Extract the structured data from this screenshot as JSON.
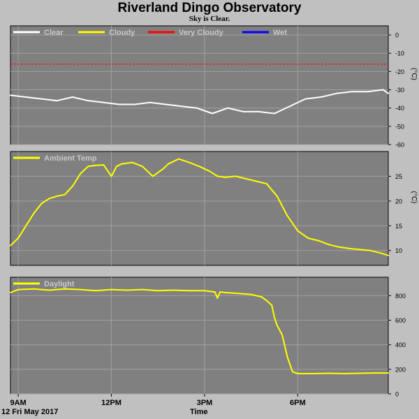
{
  "header": {
    "title": "Riverland Dingo Observatory",
    "subtitle": "Sky is Clear."
  },
  "footer": {
    "date": "12 Fri May 2017",
    "xlabel": "Time"
  },
  "colors": {
    "background": "#c0c0c0",
    "plot_bg": "#808080",
    "grid": "#a0a0a0",
    "clear": "#ffffff",
    "cloudy": "#ffff00",
    "very_cloudy": "#ff0000",
    "wet": "#0000ff"
  },
  "chart_data": [
    {
      "type": "line",
      "title": "",
      "xlabel": "Time",
      "ylabel": "(°C)",
      "x_range": [
        "08:45",
        "20:55"
      ],
      "x_ticks": [
        {
          "label": "9AM",
          "time": "09:00"
        },
        {
          "label": "12PM",
          "time": "12:00"
        },
        {
          "label": "3PM",
          "time": "15:00"
        },
        {
          "label": "6PM",
          "time": "18:00"
        }
      ],
      "ylim": [
        -60,
        5
      ],
      "y_ticks": [
        0,
        -10,
        -20,
        -30,
        -40,
        -50,
        -60
      ],
      "legend": [
        {
          "name": "Clear",
          "color": "#ffffff"
        },
        {
          "name": "Cloudy",
          "color": "#ffff00"
        },
        {
          "name": "Very Cloudy",
          "color": "#ff0000"
        },
        {
          "name": "Wet",
          "color": "#0000ff"
        }
      ],
      "threshold": {
        "value": -16,
        "color": "#ff0000",
        "style": "dashed"
      },
      "series": [
        {
          "name": "Clear",
          "color": "#ffffff",
          "x": [
            "08:45",
            "09:15",
            "09:45",
            "10:15",
            "10:45",
            "11:15",
            "11:45",
            "12:15",
            "12:45",
            "13:15",
            "13:45",
            "14:15",
            "14:45",
            "15:15",
            "15:45",
            "16:15",
            "16:45",
            "17:15",
            "17:45",
            "18:15",
            "18:45",
            "19:15",
            "19:45",
            "20:15",
            "20:45",
            "20:55"
          ],
          "y": [
            -33,
            -34,
            -35,
            -36,
            -34,
            -36,
            -37,
            -38,
            -38,
            -37,
            -38,
            -39,
            -40,
            -43,
            -40,
            -42,
            -42,
            -43,
            -39,
            -35,
            -34,
            -32,
            -31,
            -31,
            -30,
            -32
          ]
        }
      ]
    },
    {
      "type": "line",
      "title": "",
      "xlabel": "Time",
      "ylabel": "(°C)",
      "x_range": [
        "08:45",
        "20:55"
      ],
      "x_ticks": [
        {
          "label": "9AM",
          "time": "09:00"
        },
        {
          "label": "12PM",
          "time": "12:00"
        },
        {
          "label": "3PM",
          "time": "15:00"
        },
        {
          "label": "6PM",
          "time": "18:00"
        }
      ],
      "ylim": [
        7,
        30
      ],
      "y_ticks": [
        10,
        15,
        20,
        25
      ],
      "legend": [
        {
          "name": "Ambient Temp",
          "color": "#ffff00"
        }
      ],
      "series": [
        {
          "name": "Ambient Temp",
          "color": "#ffff00",
          "x": [
            "08:45",
            "09:00",
            "09:15",
            "09:30",
            "09:45",
            "10:00",
            "10:15",
            "10:30",
            "10:45",
            "11:00",
            "11:15",
            "11:30",
            "11:45",
            "12:00",
            "12:10",
            "12:20",
            "12:40",
            "13:00",
            "13:20",
            "13:40",
            "13:50",
            "14:00",
            "14:10",
            "14:30",
            "14:50",
            "15:10",
            "15:25",
            "15:40",
            "16:00",
            "16:20",
            "16:40",
            "17:00",
            "17:20",
            "17:40",
            "18:00",
            "18:20",
            "18:40",
            "19:00",
            "19:20",
            "19:40",
            "20:00",
            "20:20",
            "20:40",
            "20:55"
          ],
          "y": [
            11,
            12.5,
            15,
            17.5,
            19.5,
            20.5,
            21,
            21.3,
            23,
            25.5,
            27,
            27.2,
            27.3,
            25,
            27,
            27.5,
            27.8,
            27,
            25,
            26.5,
            27.5,
            28,
            28.5,
            27.8,
            27,
            26,
            25,
            24.8,
            25,
            24.5,
            24,
            23.5,
            21,
            17,
            14,
            12.5,
            12,
            11.2,
            10.7,
            10.4,
            10.2,
            10,
            9.5,
            9
          ]
        }
      ]
    },
    {
      "type": "line",
      "title": "",
      "xlabel": "Time",
      "ylabel": "",
      "x_range": [
        "08:45",
        "20:55"
      ],
      "x_ticks": [
        {
          "label": "9AM",
          "time": "09:00"
        },
        {
          "label": "12PM",
          "time": "12:00"
        },
        {
          "label": "3PM",
          "time": "15:00"
        },
        {
          "label": "6PM",
          "time": "18:00"
        }
      ],
      "ylim": [
        0,
        950
      ],
      "y_ticks": [
        0,
        200,
        400,
        600,
        800
      ],
      "legend": [
        {
          "name": "Daylight",
          "color": "#ffff00"
        }
      ],
      "series": [
        {
          "name": "Daylight",
          "color": "#ffff00",
          "x": [
            "08:45",
            "09:00",
            "09:30",
            "10:00",
            "10:30",
            "11:00",
            "11:30",
            "12:00",
            "12:30",
            "13:00",
            "13:30",
            "14:00",
            "14:30",
            "15:00",
            "15:20",
            "15:25",
            "15:30",
            "15:40",
            "16:00",
            "16:30",
            "16:50",
            "17:00",
            "17:10",
            "17:15",
            "17:20",
            "17:30",
            "17:40",
            "17:50",
            "18:00",
            "18:30",
            "19:00",
            "19:30",
            "20:00",
            "20:30",
            "20:55"
          ],
          "y": [
            825,
            850,
            855,
            845,
            855,
            850,
            840,
            850,
            845,
            850,
            840,
            845,
            840,
            840,
            830,
            780,
            830,
            825,
            820,
            810,
            790,
            760,
            720,
            620,
            560,
            480,
            300,
            180,
            165,
            165,
            168,
            165,
            168,
            170,
            170
          ]
        }
      ]
    }
  ]
}
